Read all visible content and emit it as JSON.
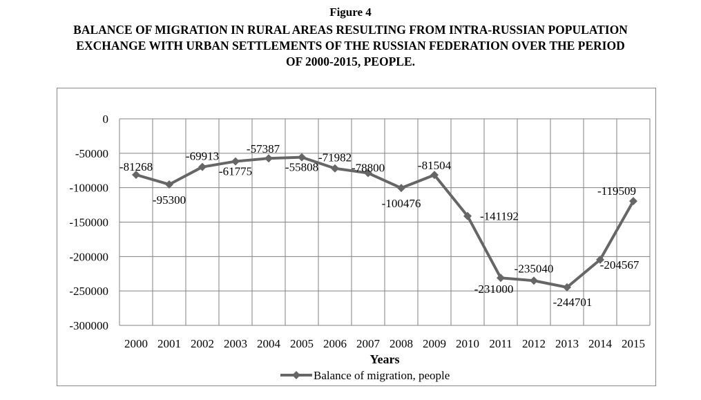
{
  "figure": {
    "label": "Figure 4",
    "title_lines": [
      "BALANCE OF MIGRATION IN RURAL AREAS RESULTING FROM INTRA-RUSSIAN POPULATION",
      "EXCHANGE WITH URBAN SETTLEMENTS OF THE RUSSIAN FEDERATION OVER THE PERIOD",
      "OF 2000-2015, PEOPLE."
    ]
  },
  "chart_data": {
    "type": "line",
    "title": "BALANCE OF MIGRATION IN RURAL AREAS RESULTING FROM INTRA-RUSSIAN POPULATION EXCHANGE WITH URBAN SETTLEMENTS OF THE RUSSIAN FEDERATION OVER THE PERIOD OF 2000-2015, PEOPLE.",
    "xlabel": "Years",
    "ylabel": "",
    "categories": [
      "2000",
      "2001",
      "2002",
      "2003",
      "2004",
      "2005",
      "2006",
      "2007",
      "2008",
      "2009",
      "2010",
      "2011",
      "2012",
      "2013",
      "2014",
      "2015"
    ],
    "series": [
      {
        "name": "Balance of migration, people",
        "values": [
          -81268,
          -95300,
          -69913,
          -61775,
          -57387,
          -55808,
          -71982,
          -78800,
          -100476,
          -81504,
          -141192,
          -231000,
          -235040,
          -244701,
          -204567,
          -119509
        ]
      }
    ],
    "ylim": [
      -300000,
      0
    ],
    "yticks": [
      0,
      -50000,
      -100000,
      -150000,
      -200000,
      -250000,
      -300000
    ],
    "grid": true,
    "legend": "bottom",
    "colors": {
      "series": "#666666",
      "grid": "#808080"
    }
  }
}
